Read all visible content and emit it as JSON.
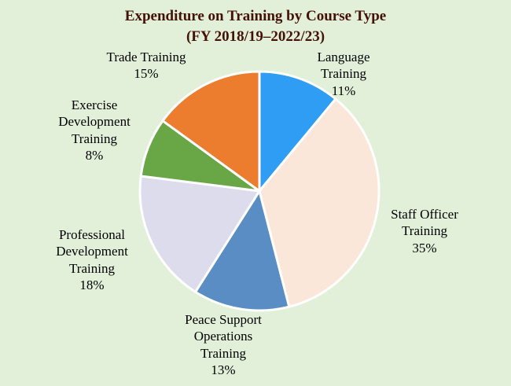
{
  "background_color": "#e2f0d9",
  "title_color": "#441106",
  "chart_data": {
    "type": "pie",
    "title": "Expenditure on Training by Course Type",
    "subtitle": "(FY 2018/19–2022/23)",
    "unit": "%",
    "start_angle_deg": 0,
    "direction": "clockwise",
    "legend_position": "none",
    "slice_border_color": "#ffffff",
    "segments": [
      {
        "label": "Language Training",
        "value": 11,
        "pct": "11%",
        "color": "#2e9df3"
      },
      {
        "label": "Staff Officer Training",
        "value": 35,
        "pct": "35%",
        "color": "#fbe6da"
      },
      {
        "label": "Peace Support Operations Training",
        "value": 13,
        "pct": "13%",
        "color": "#5b8dc5"
      },
      {
        "label": "Professional Development Training",
        "value": 18,
        "pct": "18%",
        "color": "#dddcec"
      },
      {
        "label": "Exercise Development Training",
        "value": 8,
        "pct": "8%",
        "color": "#69a746"
      },
      {
        "label": "Trade Training",
        "value": 15,
        "pct": "15%",
        "color": "#ec7d2e"
      }
    ]
  }
}
